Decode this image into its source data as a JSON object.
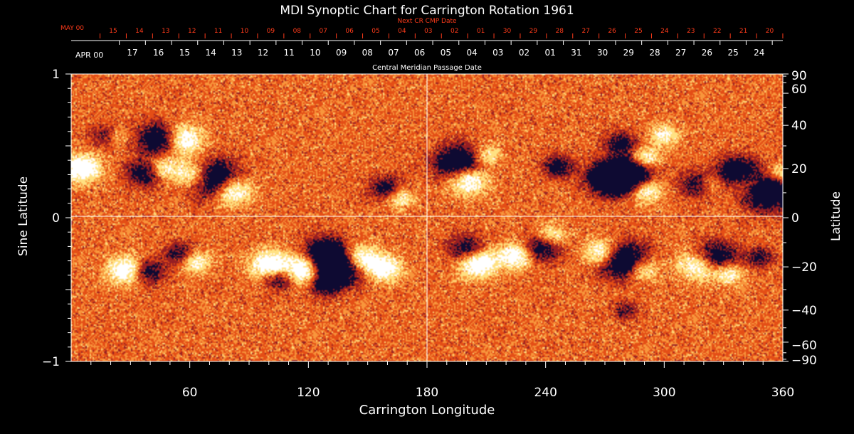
{
  "chart_data": {
    "type": "heatmap",
    "title": "MDI Synoptic Chart for Carrington Rotation 1961",
    "xlabel": "Carrington Longitude",
    "ylabel_left": "Sine Latitude",
    "ylabel_right": "Latitude",
    "xlim": [
      0,
      360
    ],
    "ylim": [
      -1,
      1
    ],
    "x_ticks": [
      {
        "value": 60,
        "label": "60"
      },
      {
        "value": 120,
        "label": "120"
      },
      {
        "value": 180,
        "label": "180"
      },
      {
        "value": 240,
        "label": "240"
      },
      {
        "value": 300,
        "label": "300"
      },
      {
        "value": 360,
        "label": "360"
      }
    ],
    "y_ticks_left": [
      {
        "value": 1,
        "label": "1"
      },
      {
        "value": 0,
        "label": "0"
      },
      {
        "value": -1,
        "label": "−1"
      }
    ],
    "y_ticks_right": [
      {
        "value": 90,
        "label": "90"
      },
      {
        "value": 60,
        "label": "60"
      },
      {
        "value": 40,
        "label": "40"
      },
      {
        "value": 20,
        "label": "20"
      },
      {
        "value": 0,
        "label": "0"
      },
      {
        "value": -20,
        "label": "−20"
      },
      {
        "value": -40,
        "label": "−40"
      },
      {
        "value": -60,
        "label": "−60"
      },
      {
        "value": -90,
        "label": "−90"
      }
    ],
    "top_axis_black": {
      "title": "Central Meridian Passage Date",
      "month_label": "APR 00",
      "dates": [
        "17",
        "16",
        "15",
        "14",
        "13",
        "12",
        "11",
        "10",
        "09",
        "08",
        "07",
        "06",
        "05",
        "04",
        "03",
        "02",
        "01",
        "31",
        "30",
        "29",
        "28",
        "27",
        "26",
        "25",
        "24"
      ]
    },
    "top_axis_red": {
      "title": "Next CR CMP Date",
      "month_label": "MAY 00",
      "dates": [
        "15",
        "14",
        "13",
        "12",
        "11",
        "10",
        "09",
        "08",
        "07",
        "06",
        "05",
        "04",
        "03",
        "02",
        "01",
        "30",
        "29",
        "28",
        "27",
        "26",
        "25",
        "24",
        "23",
        "22",
        "21",
        "20"
      ]
    },
    "colors": {
      "background": "#000000",
      "field": "#e8501a",
      "positive_polarity": "#ffffff",
      "negative_polarity": "#0a0830",
      "red_axis": "#ff3b1a"
    },
    "regions": [
      {
        "lon": 18,
        "lat": 0.58,
        "polarity": "neg",
        "strength": 0.6
      },
      {
        "lon": 22,
        "lat": 0.58,
        "polarity": "pos",
        "strength": 0.5
      },
      {
        "lon": 45,
        "lat": 0.55,
        "polarity": "neg",
        "strength": 1.0
      },
      {
        "lon": 55,
        "lat": 0.55,
        "polarity": "pos",
        "strength": 0.9
      },
      {
        "lon": 38,
        "lat": 0.32,
        "polarity": "neg",
        "strength": 0.8
      },
      {
        "lon": 45,
        "lat": 0.35,
        "polarity": "pos",
        "strength": 0.7
      },
      {
        "lon": 5,
        "lat": 0.35,
        "polarity": "pos",
        "strength": 0.8
      },
      {
        "lon": 62,
        "lat": 0.3,
        "polarity": "pos",
        "strength": 0.8
      },
      {
        "lon": 72,
        "lat": 0.27,
        "polarity": "neg",
        "strength": 1.2
      },
      {
        "lon": 80,
        "lat": 0.2,
        "polarity": "pos",
        "strength": 0.9
      },
      {
        "lon": 160,
        "lat": 0.2,
        "polarity": "neg",
        "strength": 0.7
      },
      {
        "lon": 165,
        "lat": 0.15,
        "polarity": "pos",
        "strength": 0.6
      },
      {
        "lon": 196,
        "lat": 0.38,
        "polarity": "neg",
        "strength": 1.1
      },
      {
        "lon": 200,
        "lat": 0.28,
        "polarity": "pos",
        "strength": 0.9
      },
      {
        "lon": 210,
        "lat": 0.44,
        "polarity": "pos",
        "strength": 0.5
      },
      {
        "lon": 246,
        "lat": 0.36,
        "polarity": "neg",
        "strength": 0.6
      },
      {
        "lon": 272,
        "lat": 0.28,
        "polarity": "neg",
        "strength": 1.0
      },
      {
        "lon": 282,
        "lat": 0.3,
        "polarity": "neg",
        "strength": 1.1
      },
      {
        "lon": 290,
        "lat": 0.2,
        "polarity": "pos",
        "strength": 0.7
      },
      {
        "lon": 290,
        "lat": 0.42,
        "polarity": "pos",
        "strength": 0.6
      },
      {
        "lon": 278,
        "lat": 0.52,
        "polarity": "neg",
        "strength": 0.6
      },
      {
        "lon": 300,
        "lat": 0.58,
        "polarity": "pos",
        "strength": 0.5
      },
      {
        "lon": 317,
        "lat": 0.24,
        "polarity": "neg",
        "strength": 0.7
      },
      {
        "lon": 322,
        "lat": 0.24,
        "polarity": "pos",
        "strength": 0.5
      },
      {
        "lon": 337,
        "lat": 0.32,
        "polarity": "neg",
        "strength": 0.9
      },
      {
        "lon": 342,
        "lat": 0.25,
        "polarity": "pos",
        "strength": 0.7
      },
      {
        "lon": 352,
        "lat": 0.2,
        "polarity": "neg",
        "strength": 1.2
      },
      {
        "lon": 357,
        "lat": 0.3,
        "polarity": "pos",
        "strength": 0.6
      },
      {
        "lon": 28,
        "lat": -0.36,
        "polarity": "pos",
        "strength": 0.8
      },
      {
        "lon": 38,
        "lat": -0.37,
        "polarity": "neg",
        "strength": 0.7
      },
      {
        "lon": 55,
        "lat": -0.25,
        "polarity": "neg",
        "strength": 0.6
      },
      {
        "lon": 62,
        "lat": -0.3,
        "polarity": "pos",
        "strength": 0.6
      },
      {
        "lon": 100,
        "lat": -0.32,
        "polarity": "pos",
        "strength": 0.8
      },
      {
        "lon": 105,
        "lat": -0.42,
        "polarity": "neg",
        "strength": 0.6
      },
      {
        "lon": 118,
        "lat": -0.35,
        "polarity": "pos",
        "strength": 0.9
      },
      {
        "lon": 128,
        "lat": -0.25,
        "polarity": "neg",
        "strength": 1.0
      },
      {
        "lon": 135,
        "lat": -0.35,
        "polarity": "neg",
        "strength": 1.1
      },
      {
        "lon": 145,
        "lat": -0.28,
        "polarity": "pos",
        "strength": 0.8
      },
      {
        "lon": 158,
        "lat": -0.35,
        "polarity": "pos",
        "strength": 0.7
      },
      {
        "lon": 128,
        "lat": -0.46,
        "polarity": "neg",
        "strength": 0.6
      },
      {
        "lon": 200,
        "lat": -0.22,
        "polarity": "neg",
        "strength": 0.8
      },
      {
        "lon": 205,
        "lat": -0.3,
        "polarity": "pos",
        "strength": 0.9
      },
      {
        "lon": 225,
        "lat": -0.26,
        "polarity": "pos",
        "strength": 0.7
      },
      {
        "lon": 238,
        "lat": -0.2,
        "polarity": "neg",
        "strength": 0.8
      },
      {
        "lon": 242,
        "lat": -0.13,
        "polarity": "pos",
        "strength": 0.6
      },
      {
        "lon": 268,
        "lat": -0.24,
        "polarity": "pos",
        "strength": 0.7
      },
      {
        "lon": 280,
        "lat": -0.3,
        "polarity": "neg",
        "strength": 1.1
      },
      {
        "lon": 288,
        "lat": -0.35,
        "polarity": "pos",
        "strength": 0.7
      },
      {
        "lon": 280,
        "lat": -0.64,
        "polarity": "neg",
        "strength": 0.4
      },
      {
        "lon": 318,
        "lat": -0.32,
        "polarity": "pos",
        "strength": 0.9
      },
      {
        "lon": 325,
        "lat": -0.28,
        "polarity": "neg",
        "strength": 1.0
      },
      {
        "lon": 332,
        "lat": -0.38,
        "polarity": "pos",
        "strength": 0.6
      },
      {
        "lon": 348,
        "lat": -0.27,
        "polarity": "neg",
        "strength": 0.5
      }
    ]
  }
}
